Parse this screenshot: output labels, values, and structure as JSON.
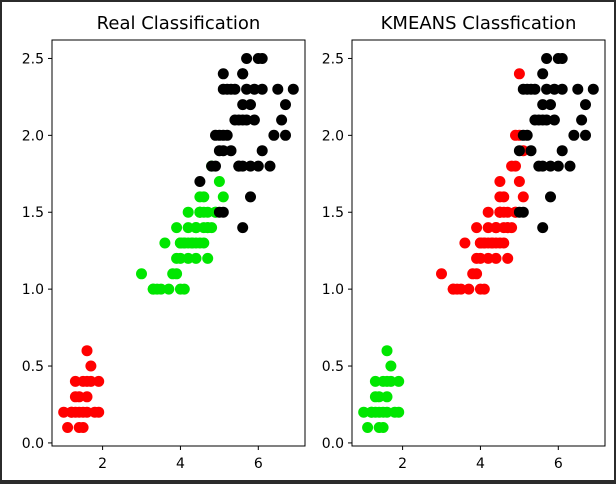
{
  "colors": {
    "background": "#2b2b2b",
    "figure": "#ffffff",
    "class_0": "#ff0000",
    "class_1": "#00e600",
    "class_2": "#000000"
  },
  "chart_data": [
    {
      "type": "scatter",
      "title": "Real Classification",
      "xlabel": "",
      "ylabel": "",
      "xlim": [
        0.7,
        7.2
      ],
      "ylim": [
        -0.02,
        2.62
      ],
      "xticks": [
        2,
        4,
        6
      ],
      "yticks": [
        0.0,
        0.5,
        1.0,
        1.5,
        2.0,
        2.5
      ],
      "grid": false,
      "series": [
        {
          "color": "#ff0000",
          "points": [
            [
              1.4,
              0.2
            ],
            [
              1.3,
              0.2
            ],
            [
              1.5,
              0.2
            ],
            [
              1.7,
              0.4
            ],
            [
              1.4,
              0.3
            ],
            [
              1.5,
              0.1
            ],
            [
              1.6,
              0.2
            ],
            [
              1.1,
              0.1
            ],
            [
              1.2,
              0.2
            ],
            [
              1.3,
              0.4
            ],
            [
              1.0,
              0.2
            ],
            [
              1.7,
              0.5
            ],
            [
              1.9,
              0.2
            ],
            [
              1.6,
              0.4
            ],
            [
              1.4,
              0.1
            ],
            [
              1.6,
              0.6
            ],
            [
              1.9,
              0.4
            ],
            [
              1.5,
              0.4
            ],
            [
              1.2,
              0.2
            ],
            [
              1.3,
              0.3
            ],
            [
              1.8,
              0.2
            ],
            [
              1.6,
              0.3
            ]
          ]
        },
        {
          "color": "#00e600",
          "points": [
            [
              4.7,
              1.4
            ],
            [
              4.5,
              1.5
            ],
            [
              4.9,
              1.5
            ],
            [
              4.0,
              1.3
            ],
            [
              4.6,
              1.5
            ],
            [
              3.3,
              1.0
            ],
            [
              3.9,
              1.4
            ],
            [
              3.5,
              1.0
            ],
            [
              4.2,
              1.5
            ],
            [
              4.0,
              1.0
            ],
            [
              4.7,
              1.4
            ],
            [
              3.6,
              1.3
            ],
            [
              4.4,
              1.4
            ],
            [
              4.1,
              1.0
            ],
            [
              4.5,
              1.5
            ],
            [
              3.9,
              1.1
            ],
            [
              4.8,
              1.8
            ],
            [
              4.0,
              1.3
            ],
            [
              4.9,
              1.5
            ],
            [
              4.7,
              1.2
            ],
            [
              4.3,
              1.3
            ],
            [
              4.4,
              1.4
            ],
            [
              4.8,
              1.4
            ],
            [
              5.0,
              1.7
            ],
            [
              4.5,
              1.5
            ],
            [
              3.8,
              1.1
            ],
            [
              3.7,
              1.0
            ],
            [
              3.9,
              1.2
            ],
            [
              5.1,
              1.6
            ],
            [
              4.5,
              1.6
            ],
            [
              4.7,
              1.5
            ],
            [
              4.4,
              1.3
            ],
            [
              4.1,
              1.3
            ],
            [
              4.0,
              1.3
            ],
            [
              4.4,
              1.2
            ],
            [
              4.6,
              1.4
            ],
            [
              4.0,
              1.2
            ],
            [
              3.3,
              1.0
            ],
            [
              4.2,
              1.3
            ],
            [
              4.2,
              1.2
            ],
            [
              4.3,
              1.3
            ],
            [
              3.0,
              1.1
            ],
            [
              4.1,
              1.3
            ],
            [
              3.4,
              1.0
            ],
            [
              4.2,
              1.4
            ],
            [
              4.6,
              1.3
            ],
            [
              4.5,
              1.3
            ],
            [
              4.4,
              1.4
            ],
            [
              4.6,
              1.6
            ]
          ]
        },
        {
          "color": "#000000",
          "points": [
            [
              6.0,
              2.5
            ],
            [
              5.1,
              1.9
            ],
            [
              5.9,
              2.1
            ],
            [
              5.6,
              1.8
            ],
            [
              5.8,
              2.2
            ],
            [
              6.6,
              2.1
            ],
            [
              4.5,
              1.7
            ],
            [
              6.3,
              1.8
            ],
            [
              5.8,
              1.8
            ],
            [
              6.1,
              2.5
            ],
            [
              5.1,
              2.0
            ],
            [
              5.3,
              1.9
            ],
            [
              5.5,
              2.1
            ],
            [
              5.0,
              2.0
            ],
            [
              5.1,
              2.4
            ],
            [
              5.3,
              2.3
            ],
            [
              5.5,
              1.8
            ],
            [
              6.7,
              2.2
            ],
            [
              6.9,
              2.3
            ],
            [
              5.0,
              1.5
            ],
            [
              5.7,
              2.3
            ],
            [
              4.9,
              2.0
            ],
            [
              6.7,
              2.0
            ],
            [
              4.9,
              1.8
            ],
            [
              5.7,
              2.1
            ],
            [
              6.0,
              1.8
            ],
            [
              4.8,
              1.8
            ],
            [
              5.6,
              2.1
            ],
            [
              5.8,
              1.6
            ],
            [
              6.1,
              1.9
            ],
            [
              6.4,
              2.0
            ],
            [
              5.6,
              2.2
            ],
            [
              5.1,
              1.5
            ],
            [
              5.6,
              1.4
            ],
            [
              6.1,
              2.3
            ],
            [
              5.6,
              2.4
            ],
            [
              5.5,
              1.8
            ],
            [
              5.4,
              2.1
            ],
            [
              5.6,
              2.4
            ],
            [
              5.1,
              2.3
            ],
            [
              5.9,
              2.3
            ],
            [
              5.7,
              2.5
            ],
            [
              5.2,
              2.3
            ],
            [
              5.0,
              1.9
            ],
            [
              5.2,
              2.0
            ],
            [
              5.4,
              2.3
            ],
            [
              6.5,
              2.3
            ]
          ]
        }
      ]
    },
    {
      "type": "scatter",
      "title": "KMEANS Classfication",
      "xlabel": "",
      "ylabel": "",
      "xlim": [
        0.7,
        7.2
      ],
      "ylim": [
        -0.02,
        2.62
      ],
      "xticks": [
        2,
        4,
        6
      ],
      "yticks": [
        0.0,
        0.5,
        1.0,
        1.5,
        2.0,
        2.5
      ],
      "grid": false,
      "series": [
        {
          "color": "#00e600",
          "points": [
            [
              1.4,
              0.2
            ],
            [
              1.3,
              0.2
            ],
            [
              1.5,
              0.2
            ],
            [
              1.7,
              0.4
            ],
            [
              1.4,
              0.3
            ],
            [
              1.5,
              0.1
            ],
            [
              1.6,
              0.2
            ],
            [
              1.1,
              0.1
            ],
            [
              1.2,
              0.2
            ],
            [
              1.3,
              0.4
            ],
            [
              1.0,
              0.2
            ],
            [
              1.7,
              0.5
            ],
            [
              1.9,
              0.2
            ],
            [
              1.6,
              0.4
            ],
            [
              1.4,
              0.1
            ],
            [
              1.6,
              0.6
            ],
            [
              1.9,
              0.4
            ],
            [
              1.5,
              0.4
            ],
            [
              1.2,
              0.2
            ],
            [
              1.3,
              0.3
            ],
            [
              1.8,
              0.2
            ],
            [
              1.6,
              0.3
            ]
          ]
        },
        {
          "color": "#ff0000",
          "points": [
            [
              4.7,
              1.4
            ],
            [
              4.5,
              1.5
            ],
            [
              4.9,
              1.5
            ],
            [
              4.0,
              1.3
            ],
            [
              4.6,
              1.5
            ],
            [
              3.3,
              1.0
            ],
            [
              3.9,
              1.4
            ],
            [
              3.5,
              1.0
            ],
            [
              4.2,
              1.5
            ],
            [
              4.0,
              1.0
            ],
            [
              4.7,
              1.4
            ],
            [
              3.6,
              1.3
            ],
            [
              4.4,
              1.4
            ],
            [
              4.1,
              1.0
            ],
            [
              4.5,
              1.5
            ],
            [
              3.9,
              1.1
            ],
            [
              4.0,
              1.3
            ],
            [
              4.9,
              1.5
            ],
            [
              4.7,
              1.2
            ],
            [
              4.3,
              1.3
            ],
            [
              4.4,
              1.4
            ],
            [
              4.8,
              1.4
            ],
            [
              4.5,
              1.5
            ],
            [
              3.8,
              1.1
            ],
            [
              3.7,
              1.0
            ],
            [
              3.9,
              1.2
            ],
            [
              4.5,
              1.6
            ],
            [
              4.7,
              1.5
            ],
            [
              4.4,
              1.3
            ],
            [
              4.1,
              1.3
            ],
            [
              4.0,
              1.3
            ],
            [
              4.4,
              1.2
            ],
            [
              4.6,
              1.4
            ],
            [
              4.0,
              1.2
            ],
            [
              3.3,
              1.0
            ],
            [
              4.2,
              1.3
            ],
            [
              4.2,
              1.2
            ],
            [
              4.3,
              1.3
            ],
            [
              3.0,
              1.1
            ],
            [
              4.1,
              1.3
            ],
            [
              3.4,
              1.0
            ],
            [
              4.2,
              1.4
            ],
            [
              4.6,
              1.3
            ],
            [
              4.5,
              1.3
            ],
            [
              4.4,
              1.4
            ],
            [
              4.6,
              1.6
            ],
            [
              4.5,
              1.7
            ],
            [
              4.9,
              1.8
            ],
            [
              4.8,
              1.8
            ],
            [
              4.9,
              2.0
            ],
            [
              5.0,
              2.0
            ],
            [
              5.0,
              1.7
            ],
            [
              5.1,
              1.6
            ],
            [
              5.0,
              2.4
            ],
            [
              5.1,
              1.9
            ]
          ]
        },
        {
          "color": "#000000",
          "points": [
            [
              6.0,
              2.5
            ],
            [
              5.9,
              2.1
            ],
            [
              5.6,
              1.8
            ],
            [
              5.8,
              2.2
            ],
            [
              6.6,
              2.1
            ],
            [
              6.3,
              1.8
            ],
            [
              5.8,
              1.8
            ],
            [
              6.1,
              2.5
            ],
            [
              5.3,
              1.9
            ],
            [
              5.5,
              2.1
            ],
            [
              5.3,
              2.3
            ],
            [
              5.5,
              1.8
            ],
            [
              6.7,
              2.2
            ],
            [
              6.9,
              2.3
            ],
            [
              5.0,
              1.5
            ],
            [
              5.7,
              2.3
            ],
            [
              6.7,
              2.0
            ],
            [
              5.7,
              2.1
            ],
            [
              6.0,
              1.8
            ],
            [
              5.6,
              2.1
            ],
            [
              5.8,
              1.6
            ],
            [
              6.1,
              1.9
            ],
            [
              6.4,
              2.0
            ],
            [
              5.6,
              2.2
            ],
            [
              5.1,
              1.5
            ],
            [
              5.6,
              1.4
            ],
            [
              6.1,
              2.3
            ],
            [
              5.6,
              2.4
            ],
            [
              5.4,
              2.1
            ],
            [
              5.1,
              2.3
            ],
            [
              5.9,
              2.3
            ],
            [
              5.7,
              2.5
            ],
            [
              5.2,
              2.3
            ],
            [
              5.2,
              2.0
            ],
            [
              5.4,
              2.3
            ],
            [
              6.5,
              2.3
            ],
            [
              5.1,
              2.0
            ],
            [
              5.0,
              1.9
            ]
          ]
        }
      ]
    }
  ]
}
